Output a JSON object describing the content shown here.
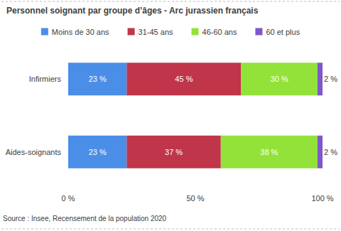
{
  "chart_data": {
    "type": "bar",
    "title": "Personnel soignant par groupe d’âges - Arc jurassien français",
    "source": "Source : Insee, Recensement de la population 2020",
    "orientation": "horizontal",
    "stacked": true,
    "data_labels": true,
    "grid": false,
    "legend": "top",
    "categories": [
      "Infirmiers",
      "Aides-soignants"
    ],
    "series": [
      {
        "name": "Moins de 30 ans",
        "color": "#4a8ee8",
        "values": [
          23,
          23
        ],
        "value_labels": [
          "23 %",
          "23 %"
        ]
      },
      {
        "name": "31-45 ans",
        "color": "#c0354a",
        "values": [
          45,
          37
        ],
        "value_labels": [
          "45 %",
          "37 %"
        ]
      },
      {
        "name": "46-60 ans",
        "color": "#92e23a",
        "values": [
          30,
          38
        ],
        "value_labels": [
          "30 %",
          "38 %"
        ]
      },
      {
        "name": "60 et plus",
        "color": "#7e57c8",
        "values": [
          2,
          2
        ],
        "value_labels": [
          "2 %",
          "2 %"
        ]
      }
    ],
    "xlim": [
      0,
      100
    ],
    "xticks": [
      {
        "value": 0,
        "label": "0 %"
      },
      {
        "value": 50,
        "label": "50 %"
      },
      {
        "value": 100,
        "label": "100 %"
      }
    ]
  }
}
